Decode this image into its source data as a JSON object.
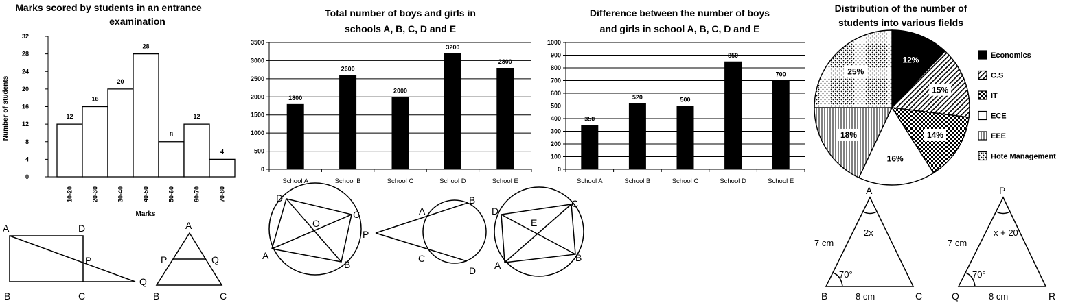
{
  "chart_data": [
    {
      "type": "bar",
      "title": "Marks scored by students in an entrance examination",
      "title_lines": [
        "Marks scored by students in an entrance",
        "examination"
      ],
      "xlabel": "Marks",
      "ylabel": "Number of students",
      "categories": [
        "10-20",
        "20-30",
        "30-40",
        "40-50",
        "50-60",
        "60-70",
        "70-80"
      ],
      "values": [
        12,
        16,
        20,
        28,
        8,
        12,
        4
      ],
      "ylim": [
        0,
        32
      ],
      "yticks": [
        0,
        4,
        8,
        12,
        16,
        20,
        24,
        28,
        32
      ],
      "grid": false
    },
    {
      "type": "bar",
      "title": "Total number of boys and girls in schools A, B, C, D and E",
      "title_lines": [
        "Total number of boys and girls in",
        "schools A, B, C, D and E"
      ],
      "categories": [
        "School A",
        "School B",
        "School C",
        "School D",
        "School E"
      ],
      "values": [
        1800,
        2600,
        2000,
        3200,
        2800
      ],
      "ylim": [
        0,
        3500
      ],
      "yticks": [
        0,
        500,
        1000,
        1500,
        2000,
        2500,
        3000,
        3500
      ],
      "grid": true
    },
    {
      "type": "bar",
      "title": "Difference between the number of boys and girls in school A, B, C, D and E",
      "title_lines": [
        "Difference between the number of boys",
        "and girls in school A, B, C, D and E"
      ],
      "categories": [
        "School A",
        "School B",
        "School C",
        "School D",
        "School E"
      ],
      "values": [
        350,
        520,
        500,
        850,
        700
      ],
      "ylim": [
        0,
        1000
      ],
      "yticks": [
        0,
        100,
        200,
        300,
        400,
        500,
        600,
        700,
        800,
        900,
        1000
      ],
      "grid": true
    },
    {
      "type": "pie",
      "title": "Distribution of the number of students into various fields",
      "title_lines": [
        "Distribution of the number of",
        "students into various fields"
      ],
      "legend_position": "right",
      "slices": [
        {
          "name": "Economics",
          "value": 12,
          "label": "12%",
          "pattern": "solid"
        },
        {
          "name": "C.S",
          "value": 15,
          "label": "15%",
          "pattern": "diagonal"
        },
        {
          "name": "IT",
          "value": 14,
          "label": "14%",
          "pattern": "checker"
        },
        {
          "name": "ECE",
          "value": 16,
          "label": "16%",
          "pattern": "white"
        },
        {
          "name": "EEE",
          "value": 18,
          "label": "18%",
          "pattern": "vertical"
        },
        {
          "name": "Hote Management",
          "value": 25,
          "label": "25%",
          "pattern": "dots"
        }
      ]
    }
  ],
  "figures": {
    "rectangle": {
      "A": "A",
      "D": "D",
      "P": "P",
      "Q": "Q",
      "B": "B",
      "C": "C"
    },
    "triangle_pq": {
      "A": "A",
      "P": "P",
      "Q": "Q",
      "B": "B",
      "C": "C"
    },
    "cyclic_quad": {
      "D": "D",
      "C": "C",
      "O": "O",
      "A": "A",
      "B": "B"
    },
    "secants": {
      "P": "P",
      "A": "A",
      "B": "B",
      "C": "C",
      "D": "D"
    },
    "rect_circle": {
      "D": "D",
      "C": "C",
      "E": "E",
      "A": "A",
      "B": "B"
    },
    "triangle_abc": {
      "A": "A",
      "B": "B",
      "C": "C",
      "side_ab": "7 cm",
      "side_bc": "8 cm",
      "angle_a": "2x",
      "angle_b": "70°"
    },
    "triangle_pqr": {
      "P": "P",
      "Q": "Q",
      "R": "R",
      "side_pq": "7 cm",
      "side_qr": "8 cm",
      "angle_p": "x + 20",
      "angle_q": "70°"
    }
  }
}
